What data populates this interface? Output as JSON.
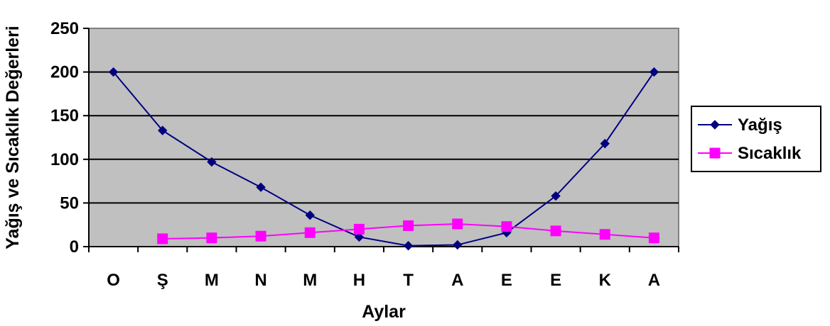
{
  "chart_data": {
    "type": "line",
    "categories": [
      "O",
      "Ş",
      "M",
      "N",
      "M",
      "H",
      "T",
      "A",
      "E",
      "E",
      "K",
      "A"
    ],
    "series": [
      {
        "name": "Yağış",
        "values": [
          200,
          133,
          97,
          68,
          36,
          11,
          1,
          2,
          16,
          58,
          118,
          200
        ],
        "color": "#000080",
        "marker": "diamond"
      },
      {
        "name": "Sıcaklık",
        "values": [
          null,
          9,
          10,
          12,
          16,
          20,
          24,
          26,
          23,
          18,
          14,
          10
        ],
        "color": "#ff00ff",
        "marker": "square"
      }
    ],
    "xlabel": "Aylar",
    "ylabel": "Yağış ve Sıcaklık Değerleri",
    "ylim": [
      0,
      250
    ],
    "yticks": [
      0,
      50,
      100,
      150,
      200,
      250
    ],
    "grid": true,
    "plot_background": "#c0c0c0",
    "legend_position": "right"
  }
}
